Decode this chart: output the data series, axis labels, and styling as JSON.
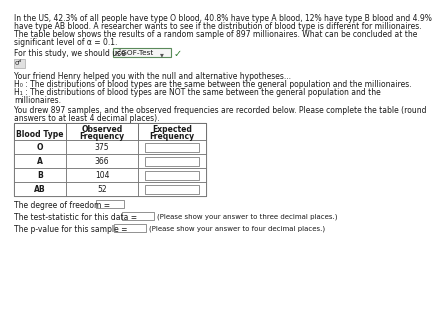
{
  "title_lines": [
    "In the US, 42.3% of all people have type O blood, 40.8% have type A blood, 12% have type B blood and 4.9%",
    "have type AB blood. A researcher wants to see if the distribution of blood type is different for millionaires.",
    "The table below shows the results of a random sample of 897 millionaires. What can be concluded at the",
    "significant level of α = 0.1."
  ],
  "study_prefix": "For this study, we should use ",
  "dropdown_text": "x²GOF-Test",
  "sigma_icon": "σᵈ",
  "hyp_intro": "Your friend Henry helped you with the null and alternative hypotheses...",
  "h0_line": "H₀ : The distributions of blood types are the same between the general population and the millionaires.",
  "h1_lines": [
    "H₁ : The distributions of blood types are NOT the same between the general population and the",
    "millionaires."
  ],
  "sample_lines": [
    "You drew 897 samples, and the observed frequencies are recorded below. Please complete the table (round",
    "answers to at least 4 decimal places)."
  ],
  "col0_header": "Blood Type",
  "col1_header": "Observed\nFrequency",
  "col2_header": "Expected\nFrequency",
  "blood_types": [
    "O",
    "A",
    "B",
    "AB"
  ],
  "observed": [
    "375",
    "366",
    "104",
    "52"
  ],
  "dof_text": "The degree of freedom =",
  "stat_text": "The test-statistic for this data =",
  "stat_note": "(Please show your answer to three decimal places.)",
  "pval_text": "The p-value for this sample =",
  "pval_note": "(Please show your answer to four decimal places.)",
  "bg_color": "#ffffff",
  "text_color": "#1a1a1a",
  "dropdown_border": "#5a8a5a",
  "check_color": "#2a7a2a",
  "table_ec": "#666666",
  "input_fc": "#e8e8e8",
  "input_ec": "#aaaaaa",
  "dropdown_fc": "#f5f5f5"
}
